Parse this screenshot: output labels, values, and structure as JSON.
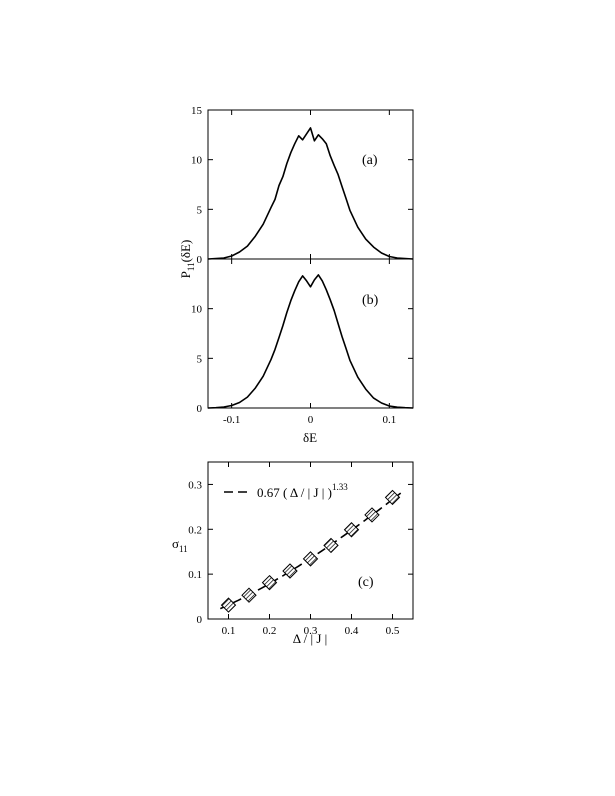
{
  "chart_data": [
    {
      "panel": "(a)",
      "type": "line",
      "xlim": [
        -0.13,
        0.13
      ],
      "ylim": [
        0,
        15
      ],
      "yticks": [
        0,
        5,
        10,
        15
      ],
      "ytick_labels": [
        "0",
        "5",
        "10",
        "15"
      ],
      "ylabel_main": "P",
      "ylabel_sub": "11",
      "ylabel_rest": "(δE)",
      "series": [
        {
          "x": [
            -0.13,
            -0.12,
            -0.11,
            -0.1,
            -0.09,
            -0.08,
            -0.07,
            -0.06,
            -0.05,
            -0.045,
            -0.04,
            -0.035,
            -0.03,
            -0.025,
            -0.02,
            -0.015,
            -0.01,
            -0.005,
            0.0,
            0.005,
            0.01,
            0.015,
            0.02,
            0.025,
            0.03,
            0.035,
            0.04,
            0.045,
            0.05,
            0.06,
            0.07,
            0.08,
            0.09,
            0.1,
            0.11,
            0.12,
            0.13
          ],
          "y": [
            0.0,
            0.05,
            0.1,
            0.3,
            0.7,
            1.3,
            2.3,
            3.5,
            5.2,
            6.0,
            7.4,
            8.3,
            9.6,
            10.7,
            11.6,
            12.4,
            12.0,
            12.6,
            13.2,
            11.9,
            12.5,
            12.1,
            11.6,
            10.4,
            9.4,
            8.5,
            7.3,
            6.1,
            4.9,
            3.2,
            2.0,
            1.2,
            0.6,
            0.25,
            0.1,
            0.05,
            0.0
          ]
        }
      ]
    },
    {
      "panel": "(b)",
      "type": "line",
      "xlim": [
        -0.13,
        0.13
      ],
      "ylim": [
        0,
        15
      ],
      "yticks": [
        0,
        5,
        10
      ],
      "ytick_labels": [
        "0",
        "5",
        "10"
      ],
      "xticks": [
        -0.1,
        0,
        0.1
      ],
      "xtick_labels": [
        "-0.1",
        "0",
        "0.1"
      ],
      "xlabel": "δE",
      "series": [
        {
          "x": [
            -0.13,
            -0.12,
            -0.11,
            -0.1,
            -0.09,
            -0.08,
            -0.07,
            -0.06,
            -0.05,
            -0.045,
            -0.04,
            -0.035,
            -0.03,
            -0.025,
            -0.02,
            -0.015,
            -0.01,
            -0.005,
            0.0,
            0.005,
            0.01,
            0.015,
            0.02,
            0.025,
            0.03,
            0.035,
            0.04,
            0.045,
            0.05,
            0.06,
            0.07,
            0.08,
            0.09,
            0.1,
            0.11,
            0.12,
            0.13
          ],
          "y": [
            0.0,
            0.03,
            0.1,
            0.25,
            0.55,
            1.1,
            2.0,
            3.2,
            4.9,
            5.9,
            7.1,
            8.3,
            9.6,
            10.8,
            11.8,
            12.7,
            13.3,
            12.8,
            12.2,
            12.9,
            13.4,
            12.8,
            11.9,
            10.9,
            9.8,
            8.5,
            7.2,
            6.0,
            4.8,
            3.1,
            1.9,
            1.0,
            0.5,
            0.2,
            0.08,
            0.03,
            0.0
          ]
        }
      ]
    },
    {
      "panel": "(c)",
      "type": "scatter",
      "xlim": [
        0.05,
        0.55
      ],
      "ylim": [
        0,
        0.35
      ],
      "xticks": [
        0.1,
        0.2,
        0.3,
        0.4,
        0.5
      ],
      "xtick_labels": [
        "0.1",
        "0.2",
        "0.3",
        "0.4",
        "0.5"
      ],
      "yticks": [
        0,
        0.1,
        0.2,
        0.3
      ],
      "ytick_labels": [
        "0",
        "0.1",
        "0.2",
        "0.3"
      ],
      "xlabel": "Δ / | J |",
      "ylabel_main": "σ",
      "ylabel_sub": "11",
      "legend_text": "0.67 ( Δ / | J | )",
      "legend_exponent": "1.33",
      "legend_position": "top-left",
      "fit": {
        "coefficient": 0.67,
        "exponent": 1.33,
        "x_range": [
          0.08,
          0.52
        ]
      },
      "series": [
        {
          "x": [
            0.1,
            0.15,
            0.2,
            0.25,
            0.3,
            0.35,
            0.4,
            0.45,
            0.5
          ],
          "y": [
            0.031,
            0.053,
            0.081,
            0.107,
            0.134,
            0.164,
            0.199,
            0.232,
            0.271
          ]
        }
      ]
    }
  ]
}
